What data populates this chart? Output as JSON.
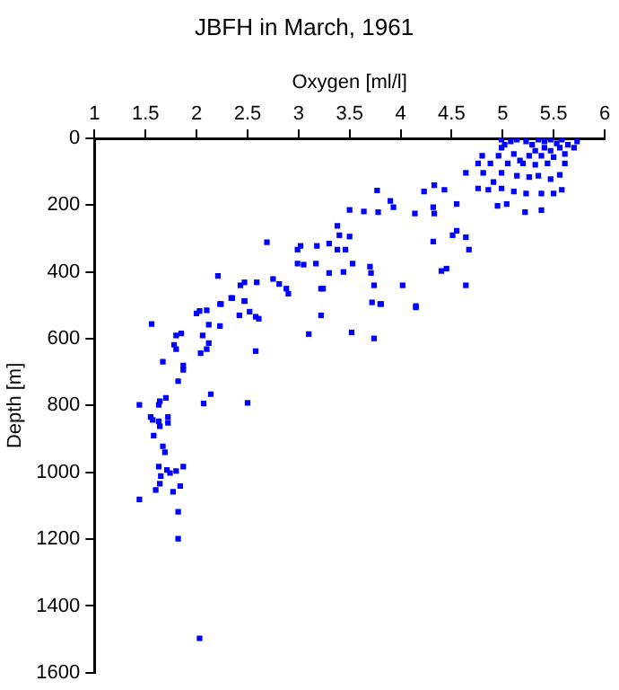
{
  "chart_data": {
    "type": "scatter",
    "title": "JBFH in March, 1961",
    "xlabel": "Oxygen [ml/l]",
    "ylabel": "Depth [m]",
    "xlim": [
      1,
      6
    ],
    "xticks": [
      1,
      1.5,
      2,
      2.5,
      3,
      3.5,
      4,
      4.5,
      5,
      5.5,
      6
    ],
    "ylim": [
      1600,
      0
    ],
    "yticks": [
      0,
      200,
      400,
      600,
      800,
      1000,
      1200,
      1400,
      1600
    ],
    "marker": "square",
    "legend": false,
    "series": [
      {
        "color": "#0000ff",
        "x": [
          4.99,
          5.02,
          5.08,
          5.14,
          5.23,
          5.29,
          5.35,
          5.41,
          5.47,
          5.53,
          5.58,
          5.64,
          5.73,
          5.41,
          5.32,
          5.47,
          5.56,
          5.7,
          5.26,
          5.38,
          5.5,
          5.61,
          4.99,
          5.11,
          5.17,
          5.05,
          4.96,
          4.8,
          4.76,
          4.88,
          5.2,
          5.32,
          5.44,
          5.61,
          4.64,
          4.81,
          4.99,
          5.14,
          5.26,
          5.35,
          5.47,
          5.56,
          4.91,
          4.76,
          4.86,
          4.99,
          5.11,
          5.23,
          5.38,
          5.5,
          5.58,
          4.95,
          5.04,
          5.22,
          5.38,
          4.33,
          4.43,
          4.23,
          4.55,
          4.32,
          4.33,
          4.14,
          3.77,
          3.9,
          3.93,
          3.78,
          3.64,
          3.5,
          3.38,
          3.4,
          3.46,
          3.38,
          3.5,
          3.3,
          3.18,
          3.02,
          2.99,
          2.69,
          2.99,
          3.05,
          3.17,
          3.3,
          3.44,
          3.53,
          3.7,
          3.71,
          3.74,
          3.81,
          4.02,
          4.15,
          4.32,
          4.51,
          4.55,
          4.64,
          4.67,
          4.4,
          4.45,
          4.64,
          3.24,
          2.88,
          2.81,
          2.75,
          2.59,
          2.47,
          2.43,
          2.21,
          2.34,
          2.47,
          2.23,
          2.9,
          1.56,
          2,
          2.03,
          2.1,
          2.24,
          2.35,
          2.47,
          2.52,
          2.42,
          2.58,
          2.61,
          2.12,
          2.23,
          1.8,
          1.85,
          2.06,
          2.12,
          2.1,
          2.04,
          2.58,
          1.78,
          1.8,
          1.67,
          1.87,
          1.87,
          1.82,
          2.14,
          2.07,
          2.5,
          1.44,
          1.64,
          1.63,
          1.7,
          1.55,
          1.57,
          1.63,
          1.64,
          1.72,
          1.72,
          1.58,
          1.67,
          1.69,
          1.63,
          1.71,
          1.74,
          1.8,
          1.87,
          1.65,
          1.64,
          1.6,
          1.77,
          1.84,
          1.44,
          1.82,
          3.22,
          3.72,
          3.8,
          4.15,
          3.1,
          3.22,
          3.52,
          3.74,
          1.82,
          2.03
        ],
        "values": [
          4,
          19,
          9,
          4,
          9,
          19,
          4,
          9,
          4,
          15,
          4,
          19,
          9,
          28,
          37,
          37,
          28,
          28,
          52,
          52,
          56,
          47,
          28,
          47,
          66,
          75,
          52,
          52,
          75,
          75,
          75,
          79,
          75,
          75,
          103,
          103,
          103,
          112,
          116,
          112,
          122,
          109,
          131,
          150,
          154,
          150,
          159,
          165,
          165,
          165,
          154,
          202,
          197,
          221,
          215,
          140,
          154,
          159,
          197,
          206,
          225,
          225,
          156,
          187,
          206,
          221,
          219,
          214,
          262,
          290,
          333,
          333,
          294,
          315,
          322,
          322,
          333,
          311,
          375,
          378,
          375,
          403,
          400,
          375,
          384,
          403,
          440,
          496,
          440,
          502,
          309,
          290,
          277,
          296,
          333,
          397,
          390,
          440,
          450,
          450,
          436,
          421,
          431,
          431,
          440,
          412,
          478,
          487,
          496,
          465,
          556,
          524,
          517,
          515,
          496,
          478,
          487,
          519,
          530,
          534,
          540,
          558,
          562,
          590,
          584,
          590,
          613,
          631,
          643,
          637,
          618,
          631,
          669,
          680,
          693,
          727,
          766,
          794,
          792,
          798,
          787,
          798,
          777,
          834,
          843,
          847,
          862,
          834,
          852,
          890,
          922,
          940,
          983,
          993,
          1002,
          996,
          983,
          1011,
          1034,
          1053,
          1058,
          1041,
          1081,
          1118,
          450,
          491,
          496,
          506,
          586,
          530,
          581,
          599,
          1199,
          1497
        ]
      }
    ]
  }
}
